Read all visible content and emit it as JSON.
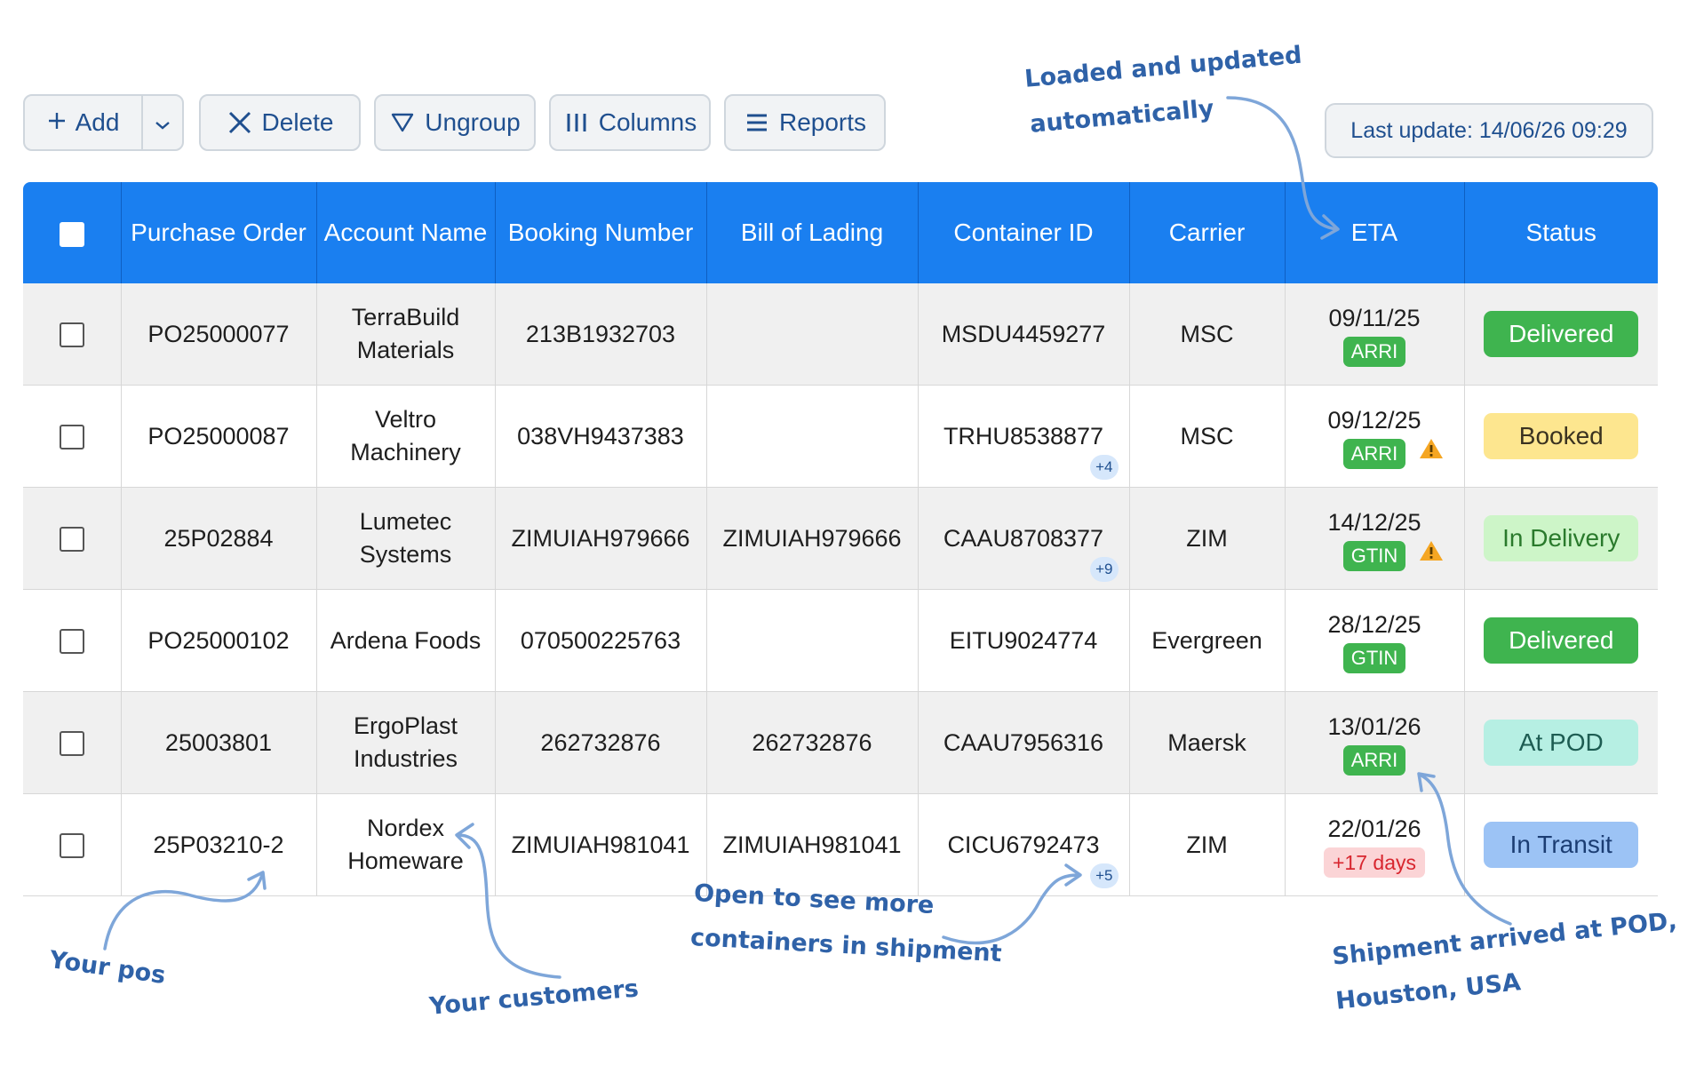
{
  "toolbar": {
    "add_label": "Add",
    "delete_label": "Delete",
    "ungroup_label": "Ungroup",
    "columns_label": "Columns",
    "reports_label": "Reports"
  },
  "last_update": "Last update: 14/06/26 09:29",
  "table": {
    "headers": {
      "purchase_order": "Purchase Order",
      "account_name": "Account Name",
      "booking_number": "Booking Number",
      "bill_of_lading": "Bill of Lading",
      "container_id": "Container ID",
      "carrier": "Carrier",
      "eta": "ETA",
      "status": "Status"
    },
    "rows": [
      {
        "po": "PO25000077",
        "account": "TerraBuild Materials",
        "booking": "213B1932703",
        "bol": "",
        "container": "MSDU4459277",
        "more": "",
        "carrier": "MSC",
        "eta": "09/11/25",
        "eta_tag": "ARRI",
        "eta_tag_style": "green",
        "warning": false,
        "status": "Delivered",
        "status_bg": "#3fb44f",
        "status_fg": "#ffffff"
      },
      {
        "po": "PO25000087",
        "account": "Veltro Machinery",
        "booking": "038VH9437383",
        "bol": "",
        "container": "TRHU8538877",
        "more": "+4",
        "carrier": "MSC",
        "eta": "09/12/25",
        "eta_tag": "ARRI",
        "eta_tag_style": "green",
        "warning": true,
        "status": "Booked",
        "status_bg": "#fde68f",
        "status_fg": "#3a3220"
      },
      {
        "po": "25P02884",
        "account": "Lumetec Systems",
        "booking": "ZIMUIAH979666",
        "bol": "ZIMUIAH979666",
        "container": "CAAU8708377",
        "more": "+9",
        "carrier": "ZIM",
        "eta": "14/12/25",
        "eta_tag": "GTIN",
        "eta_tag_style": "green",
        "warning": true,
        "status": "In Delivery",
        "status_bg": "#cdf5c8",
        "status_fg": "#2a7a2c"
      },
      {
        "po": "PO25000102",
        "account": "Ardena Foods",
        "booking": "070500225763",
        "bol": "",
        "container": "EITU9024774",
        "more": "",
        "carrier": "Evergreen",
        "eta": "28/12/25",
        "eta_tag": "GTIN",
        "eta_tag_style": "green",
        "warning": false,
        "status": "Delivered",
        "status_bg": "#3fb44f",
        "status_fg": "#ffffff"
      },
      {
        "po": "25003801",
        "account": "ErgoPlast Industries",
        "booking": "262732876",
        "bol": "262732876",
        "container": "CAAU7956316",
        "more": "",
        "carrier": "Maersk",
        "eta": "13/01/26",
        "eta_tag": "ARRI",
        "eta_tag_style": "green",
        "warning": false,
        "status": "At POD",
        "status_bg": "#b6efe3",
        "status_fg": "#1d5c52"
      },
      {
        "po": "25P03210-2",
        "account": "Nordex Homeware",
        "booking": "ZIMUIAH981041",
        "bol": "ZIMUIAH981041",
        "container": "CICU6792473",
        "more": "+5",
        "carrier": "ZIM",
        "eta": "22/01/26",
        "eta_tag": "+17 days",
        "eta_tag_style": "red",
        "warning": false,
        "status": "In Transit",
        "status_bg": "#9cc3f5",
        "status_fg": "#1b3d73"
      }
    ]
  },
  "annotations": {
    "loaded_line1": "Loaded and updated",
    "loaded_line2": "automatically",
    "your_pos": "Your pos",
    "your_customers": "Your customers",
    "open_line1": "Open to see more",
    "open_line2": "containers in shipment",
    "arrived_line1": "Shipment arrived at POD,",
    "arrived_line2": "Houston, USA"
  },
  "colors": {
    "header_blue": "#1a7ff0",
    "annotation_blue": "#2f62a8",
    "warning_orange": "#f5a623"
  },
  "icons": [
    "plus-icon",
    "chevron-down-icon",
    "close-icon",
    "filter-icon",
    "columns-icon",
    "menu-icon",
    "warning-icon",
    "checkbox-icon"
  ]
}
